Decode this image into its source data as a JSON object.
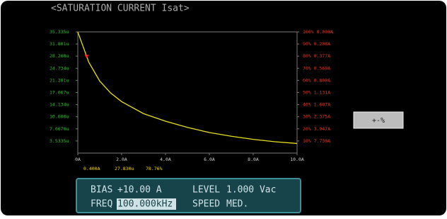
{
  "screen": {
    "title": "<SATURATION CURRENT Isat>",
    "button": "+-%",
    "panel": {
      "bias_label": "BIAS",
      "bias_value": "+10.00 A",
      "level_label": "LEVEL",
      "level_value": "1.000 Vac",
      "freq_label": "FREQ",
      "freq_value": "100.000kHz",
      "speed_label": "SPEED",
      "speed_value": "MED."
    }
  },
  "chart_data": {
    "type": "line",
    "x": [
      0,
      0.5,
      1,
      1.5,
      2,
      3,
      4,
      5,
      6,
      7,
      8,
      9,
      10
    ],
    "series": [
      {
        "color": "#e6e01a",
        "values": [
          35.3,
          26.5,
          21.0,
          17.5,
          15.0,
          11.5,
          9.3,
          7.5,
          6.0,
          4.9,
          4.0,
          3.3,
          2.8
        ]
      }
    ],
    "xlim": [
      0,
      10
    ],
    "xticks": [
      {
        "value": 0,
        "label": "0A"
      },
      {
        "value": 2,
        "label": "2.0A"
      },
      {
        "value": 4,
        "label": "4.0A"
      },
      {
        "value": 6,
        "label": "6.0A"
      },
      {
        "value": 8,
        "label": "8.0A"
      },
      {
        "value": 10,
        "label": "10.0A"
      }
    ],
    "ylim": [
      0,
      35.335
    ],
    "yticks": [
      {
        "value": 35.335,
        "label": "35.335u"
      },
      {
        "value": 31.801,
        "label": "31.801u"
      },
      {
        "value": 28.268,
        "label": "28.268u"
      },
      {
        "value": 24.734,
        "label": "24.734u"
      },
      {
        "value": 21.201,
        "label": "21.201u"
      },
      {
        "value": 17.667,
        "label": "17.667u"
      },
      {
        "value": 14.134,
        "label": "14.134u"
      },
      {
        "value": 10.6,
        "label": "10.600u"
      },
      {
        "value": 7.067,
        "label": "7.0670u"
      },
      {
        "value": 3.5335,
        "label": "3.5335u"
      }
    ],
    "y2lim": [
      0,
      100
    ],
    "y2ticks": [
      {
        "value": 100,
        "label": "100% 0.000A"
      },
      {
        "value": 90,
        "label": "90% 0.208A"
      },
      {
        "value": 80,
        "label": "80% 0.377A"
      },
      {
        "value": 70,
        "label": "70% 0.569A"
      },
      {
        "value": 60,
        "label": "60% 0.809A"
      },
      {
        "value": 50,
        "label": "50% 1.131A"
      },
      {
        "value": 40,
        "label": "40% 1.607A"
      },
      {
        "value": 30,
        "label": "30% 2.375A"
      },
      {
        "value": 20,
        "label": "20% 3.947A"
      },
      {
        "value": 10,
        "label": "10% 7.730A"
      }
    ],
    "cursor": {
      "x": 0.4,
      "y": 27.83,
      "color": "#ff2020",
      "labels": [
        "0.400A",
        "27.830u",
        "78.76%"
      ]
    }
  }
}
